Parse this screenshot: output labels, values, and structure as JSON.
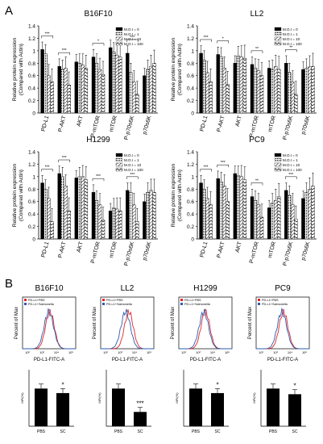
{
  "panel_labels": {
    "a": "A",
    "b": "B"
  },
  "bar_charts": {
    "ylabel": [
      "Relative protein expression",
      "(Compared with Actin)"
    ],
    "yticks": [
      "0",
      "0.2",
      "0.4",
      "0.6",
      "0.8",
      "1",
      "1.2",
      "1.4"
    ],
    "categories": [
      "PD-L1",
      "P-AKT",
      "AKT",
      "P-mTOR",
      "mTOR",
      "P-p70s6K",
      "p70s6K"
    ],
    "legend": [
      "M.O.I = 0",
      "M.O.I = 1",
      "M.O.I = 10",
      "M.O.I = 100"
    ]
  },
  "flow_common": {
    "ylabel": "Percent of Max",
    "xlabel": "PD-L1-FITC-A",
    "legend": [
      "PD-L1+PBS",
      "PD-L1+Salmonella"
    ],
    "xticks": [
      "10²",
      "10³",
      "10⁴",
      "10⁵"
    ]
  },
  "mfi_common": {
    "ylabel": "MFI(%)",
    "categories": [
      "PBS",
      "SC"
    ]
  },
  "chart_data": [
    {
      "type": "bar",
      "title": "B16F10",
      "ylim": [
        0,
        1.4
      ],
      "categories": [
        "PD-L1",
        "P-AKT",
        "AKT",
        "P-mTOR",
        "mTOR",
        "P-p70s6K",
        "p70s6K"
      ],
      "series": [
        {
          "name": "M.O.I = 0",
          "values": [
            1.02,
            0.75,
            0.82,
            0.9,
            1.05,
            0.96,
            0.6
          ]
        },
        {
          "name": "M.O.I = 1",
          "values": [
            0.95,
            0.7,
            0.8,
            0.8,
            0.98,
            0.65,
            0.7
          ]
        },
        {
          "name": "M.O.I = 10",
          "values": [
            0.6,
            0.72,
            0.77,
            0.7,
            0.93,
            0.5,
            0.75
          ]
        },
        {
          "name": "M.O.I = 100",
          "values": [
            0.5,
            0.45,
            0.72,
            0.62,
            0.9,
            0.3,
            0.8
          ]
        }
      ],
      "significance": [
        "***",
        "***",
        "",
        "*",
        "",
        "***",
        ""
      ]
    },
    {
      "type": "bar",
      "title": "LL2",
      "ylim": [
        0,
        1.4
      ],
      "categories": [
        "PD-L1",
        "P-AKT",
        "AKT",
        "P-mTOR",
        "mTOR",
        "P-p70s6K",
        "p70s6K"
      ],
      "series": [
        {
          "name": "M.O.I = 0",
          "values": [
            0.96,
            0.94,
            0.8,
            0.78,
            0.72,
            0.8,
            0.7
          ]
        },
        {
          "name": "M.O.I = 1",
          "values": [
            0.85,
            0.9,
            0.92,
            0.72,
            0.7,
            0.65,
            0.72
          ]
        },
        {
          "name": "M.O.I = 10",
          "values": [
            0.65,
            0.72,
            0.9,
            0.68,
            0.75,
            0.5,
            0.74
          ]
        },
        {
          "name": "M.O.I = 100",
          "values": [
            0.5,
            0.46,
            0.88,
            0.6,
            0.7,
            0.3,
            0.75
          ]
        }
      ],
      "significance": [
        "***",
        "*",
        "",
        "**",
        "",
        "**",
        ""
      ]
    },
    {
      "type": "bar",
      "title": "H1299",
      "ylim": [
        0,
        1.4
      ],
      "categories": [
        "PD-L1",
        "P-AKT",
        "AKT",
        "P-mTOR",
        "mTOR",
        "P-p70s6K",
        "p70s6K"
      ],
      "series": [
        {
          "name": "M.O.I = 0",
          "values": [
            0.9,
            1.05,
            0.98,
            0.75,
            0.45,
            0.78,
            0.6
          ]
        },
        {
          "name": "M.O.I = 1",
          "values": [
            0.8,
            1.0,
            1.0,
            0.62,
            0.5,
            0.75,
            0.75
          ]
        },
        {
          "name": "M.O.I = 10",
          "values": [
            0.65,
            0.85,
            1.0,
            0.55,
            0.48,
            0.55,
            0.78
          ]
        },
        {
          "name": "M.O.I = 100",
          "values": [
            0.28,
            0.45,
            0.95,
            0.3,
            0.45,
            0.28,
            0.75
          ]
        }
      ],
      "significance": [
        "***",
        "***",
        "",
        "***",
        "",
        "***",
        ""
      ]
    },
    {
      "type": "bar",
      "title": "PC9",
      "ylim": [
        0,
        1.4
      ],
      "categories": [
        "PD-L1",
        "P-AKT",
        "AKT",
        "P-mTOR",
        "mTOR",
        "P-p70s6K",
        "p70s6K"
      ],
      "series": [
        {
          "name": "M.O.I = 0",
          "values": [
            0.9,
            0.97,
            1.05,
            0.68,
            0.5,
            0.78,
            0.65
          ]
        },
        {
          "name": "M.O.I = 1",
          "values": [
            0.8,
            0.92,
            1.02,
            0.62,
            0.58,
            0.7,
            0.75
          ]
        },
        {
          "name": "M.O.I = 10",
          "values": [
            0.65,
            0.85,
            1.0,
            0.55,
            0.62,
            0.55,
            0.8
          ]
        },
        {
          "name": "M.O.I = 100",
          "values": [
            0.55,
            0.6,
            0.95,
            0.35,
            0.68,
            0.32,
            0.85
          ]
        }
      ],
      "significance": [
        "***",
        "***",
        "",
        "**",
        "",
        "***",
        ""
      ]
    },
    {
      "type": "line",
      "title": "B16F10",
      "xlabel": "PD-L1-FITC-A",
      "ylabel": "Percent of Max",
      "series": [
        {
          "name": "PD-L1+PBS",
          "color": "#e3242b"
        },
        {
          "name": "PD-L1+Salmonella",
          "color": "#2a5db0"
        }
      ],
      "peak_log10": {
        "PD-L1+PBS": 3.55,
        "PD-L1+Salmonella": 3.48
      }
    },
    {
      "type": "line",
      "title": "LL2",
      "xlabel": "PD-L1-FITC-A",
      "ylabel": "Percent of Max",
      "series": [
        {
          "name": "PD-L1+PBS",
          "color": "#e3242b"
        },
        {
          "name": "PD-L1+Salmonella",
          "color": "#2a5db0"
        }
      ],
      "peak_log10": {
        "PD-L1+PBS": 3.6,
        "PD-L1+Salmonella": 3.4
      }
    },
    {
      "type": "line",
      "title": "H1299",
      "xlabel": "PD-L1-FITC-A",
      "ylabel": "Percent of Max",
      "series": [
        {
          "name": "PD-L1+PBS",
          "color": "#e3242b"
        },
        {
          "name": "PD-L1+Salmonella",
          "color": "#2a5db0"
        }
      ],
      "peak_log10": {
        "PD-L1+PBS": 3.5,
        "PD-L1+Salmonella": 3.4
      }
    },
    {
      "type": "line",
      "title": "PC9",
      "xlabel": "PD-L1-FITC-A",
      "ylabel": "Percent of Max",
      "series": [
        {
          "name": "PD-L1+PBS",
          "color": "#e3242b"
        },
        {
          "name": "PD-L1+Salmonella",
          "color": "#2a5db0"
        }
      ],
      "peak_log10": {
        "PD-L1+PBS": 3.55,
        "PD-L1+Salmonella": 3.45
      }
    },
    {
      "type": "bar",
      "title": "B16F10",
      "ylabel": "MFI(%)",
      "categories": [
        "PBS",
        "SC"
      ],
      "values": [
        100,
        88
      ],
      "ylim": [
        0,
        150
      ],
      "significance": [
        "",
        "*"
      ]
    },
    {
      "type": "bar",
      "title": "LL2",
      "ylabel": "MFI(%)",
      "categories": [
        "PBS",
        "SC"
      ],
      "values": [
        100,
        38
      ],
      "ylim": [
        0,
        150
      ],
      "significance": [
        "",
        "***"
      ]
    },
    {
      "type": "bar",
      "title": "H1299",
      "ylabel": "MFI(%)",
      "categories": [
        "PBS",
        "SC"
      ],
      "values": [
        100,
        88
      ],
      "ylim": [
        0,
        150
      ],
      "significance": [
        "",
        "*"
      ]
    },
    {
      "type": "bar",
      "title": "PC9",
      "ylabel": "MFI(%)",
      "categories": [
        "PBS",
        "SC"
      ],
      "values": [
        100,
        85
      ],
      "ylim": [
        0,
        150
      ],
      "significance": [
        "",
        "*"
      ]
    }
  ]
}
